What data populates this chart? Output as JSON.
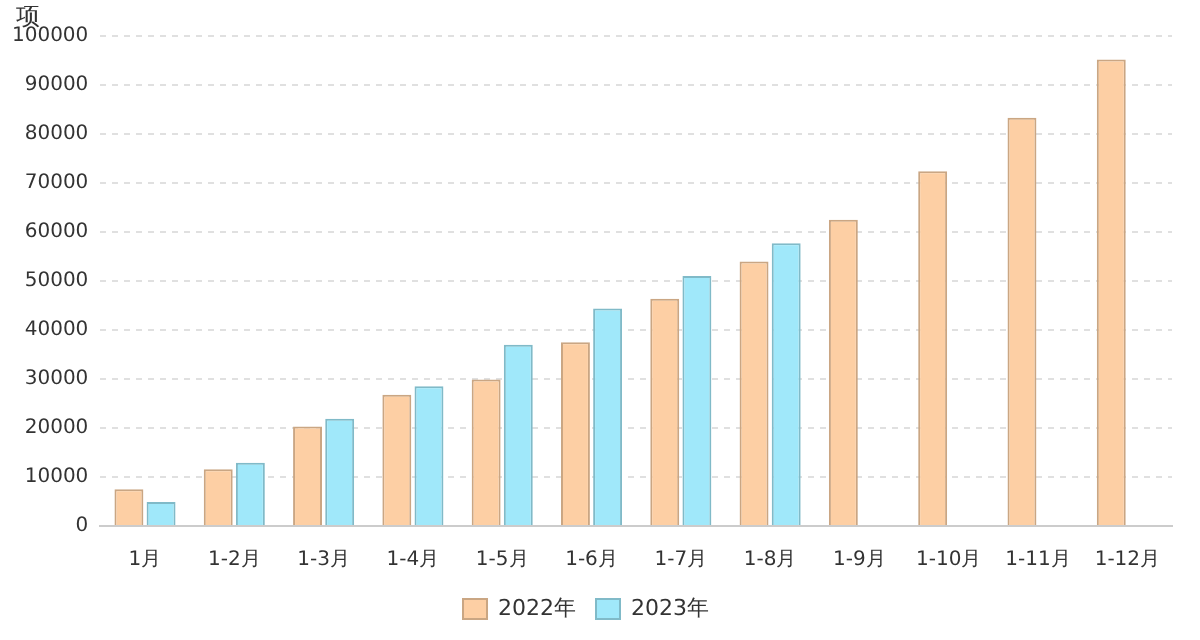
{
  "chart_data": {
    "type": "bar",
    "ylabel": "项",
    "categories": [
      "1月",
      "1-2月",
      "1-3月",
      "1-4月",
      "1-5月",
      "1-6月",
      "1-7月",
      "1-8月",
      "1-9月",
      "1-10月",
      "1-11月",
      "1-12月"
    ],
    "series": [
      {
        "name": "2022年",
        "color": "#fdcfa4",
        "values": [
          7500,
          11600,
          20300,
          26800,
          29900,
          37500,
          46400,
          54000,
          62500,
          72400,
          83300,
          95200
        ]
      },
      {
        "name": "2023年",
        "color": "#a0e8fa",
        "values": [
          4900,
          12900,
          21900,
          28500,
          37000,
          44400,
          51000,
          57700,
          null,
          null,
          null,
          null
        ]
      }
    ],
    "ylim": [
      0,
      100000
    ],
    "yticks": [
      0,
      10000,
      20000,
      30000,
      40000,
      50000,
      60000,
      70000,
      80000,
      90000,
      100000
    ],
    "grid": "y",
    "legend": "bottom"
  }
}
